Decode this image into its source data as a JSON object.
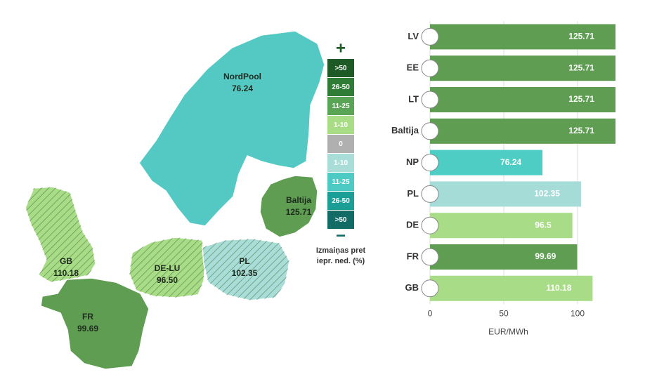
{
  "map": {
    "regions": [
      {
        "name": "NordPool",
        "value": "76.24",
        "color": "#54c9c3",
        "hatched": false
      },
      {
        "name": "Baltija",
        "value": "125.71",
        "color": "#5f9e52",
        "hatched": false
      },
      {
        "name": "GB",
        "value": "110.18",
        "color": "#a9dc86",
        "hatched": true
      },
      {
        "name": "DE-LU",
        "value": "96.50",
        "color": "#a9dc86",
        "hatched": true
      },
      {
        "name": "PL",
        "value": "102.35",
        "color": "#a9ddd8",
        "hatched": true
      },
      {
        "name": "FR",
        "value": "99.69",
        "color": "#5f9e52",
        "hatched": false
      }
    ],
    "legend": {
      "plus": "+",
      "minus": "−",
      "items": [
        {
          "label": ">50",
          "color": "#1d5a26"
        },
        {
          "label": "26-50",
          "color": "#2f7c36"
        },
        {
          "label": "11-25",
          "color": "#5aa555"
        },
        {
          "label": "1-10",
          "color": "#a8dc85"
        },
        {
          "label": "0",
          "color": "#b0b0b0"
        },
        {
          "label": "1-10",
          "color": "#a9ddd8"
        },
        {
          "label": "11-25",
          "color": "#4ecac4"
        },
        {
          "label": "26-50",
          "color": "#1a9e96"
        },
        {
          "label": ">50",
          "color": "#136b66"
        }
      ],
      "caption": [
        "Izmaiņas pret",
        "iepr. ned. (%)"
      ]
    }
  },
  "chart_data": {
    "type": "bar",
    "orientation": "horizontal",
    "categories": [
      "LV",
      "EE",
      "LT",
      "Baltija",
      "NP",
      "PL",
      "DE",
      "FR",
      "GB"
    ],
    "values": [
      125.71,
      125.71,
      125.71,
      125.71,
      76.24,
      102.35,
      96.5,
      99.69,
      110.18
    ],
    "colors": [
      "#5f9e52",
      "#5f9e52",
      "#5f9e52",
      "#5f9e52",
      "#4ecdc4",
      "#a5dcd8",
      "#a9dc86",
      "#5f9e52",
      "#a9dc86"
    ],
    "xlim": [
      0,
      130
    ],
    "xticks": [
      0,
      50,
      100
    ],
    "xlabel": "EUR/MWh",
    "grid": true
  }
}
